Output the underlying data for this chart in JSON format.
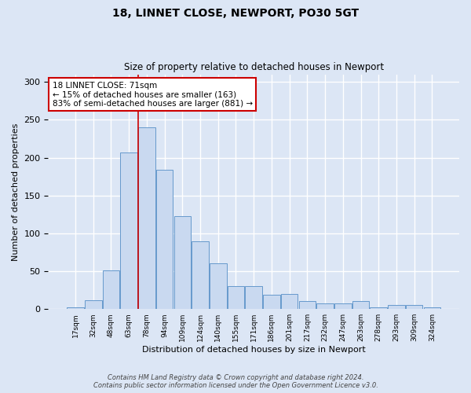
{
  "title1": "18, LINNET CLOSE, NEWPORT, PO30 5GT",
  "title2": "Size of property relative to detached houses in Newport",
  "xlabel": "Distribution of detached houses by size in Newport",
  "ylabel": "Number of detached properties",
  "bar_labels": [
    "17sqm",
    "32sqm",
    "48sqm",
    "63sqm",
    "78sqm",
    "94sqm",
    "109sqm",
    "124sqm",
    "140sqm",
    "155sqm",
    "171sqm",
    "186sqm",
    "201sqm",
    "217sqm",
    "232sqm",
    "247sqm",
    "263sqm",
    "278sqm",
    "293sqm",
    "309sqm",
    "324sqm"
  ],
  "bar_values": [
    2,
    12,
    51,
    207,
    240,
    184,
    123,
    90,
    60,
    30,
    30,
    19,
    20,
    11,
    7,
    7,
    11,
    2,
    5,
    5,
    2
  ],
  "bar_color": "#c9d9f0",
  "bar_edge_color": "#6699cc",
  "vline_x": 3.5,
  "vline_color": "#cc0000",
  "annotation_text": "18 LINNET CLOSE: 71sqm\n← 15% of detached houses are smaller (163)\n83% of semi-detached houses are larger (881) →",
  "annotation_box_color": "#ffffff",
  "annotation_box_edge": "#cc0000",
  "footnote": "Contains HM Land Registry data © Crown copyright and database right 2024.\nContains public sector information licensed under the Open Government Licence v3.0.",
  "ylim": [
    0,
    310
  ],
  "background_color": "#dce6f5",
  "plot_bg_color": "#dce6f5",
  "grid_color": "#ffffff"
}
